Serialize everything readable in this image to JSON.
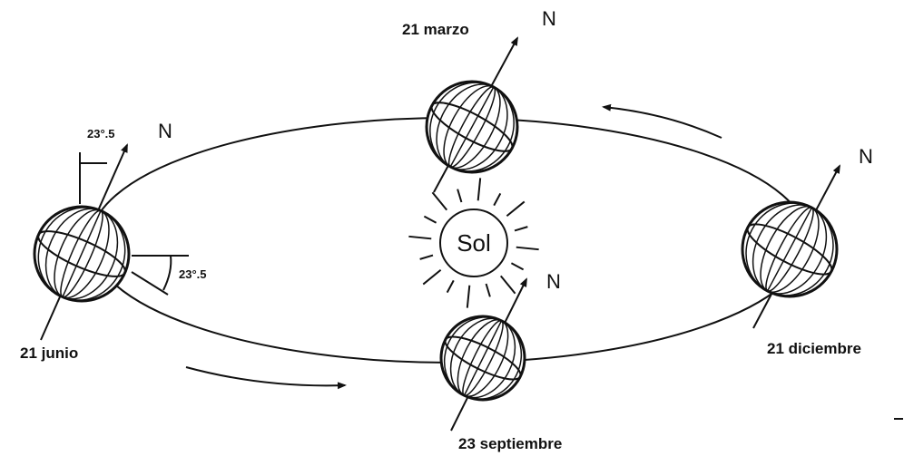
{
  "title_globes": [
    {
      "date": "21 marzo",
      "north": "N"
    },
    {
      "date": "21 junio",
      "north": "N"
    },
    {
      "date": "23 septiembre",
      "north": "N"
    },
    {
      "date": "21 diciembre",
      "north": "N"
    }
  ],
  "sun": "Sol",
  "angles": [
    "23°.5",
    "23°.5"
  ]
}
